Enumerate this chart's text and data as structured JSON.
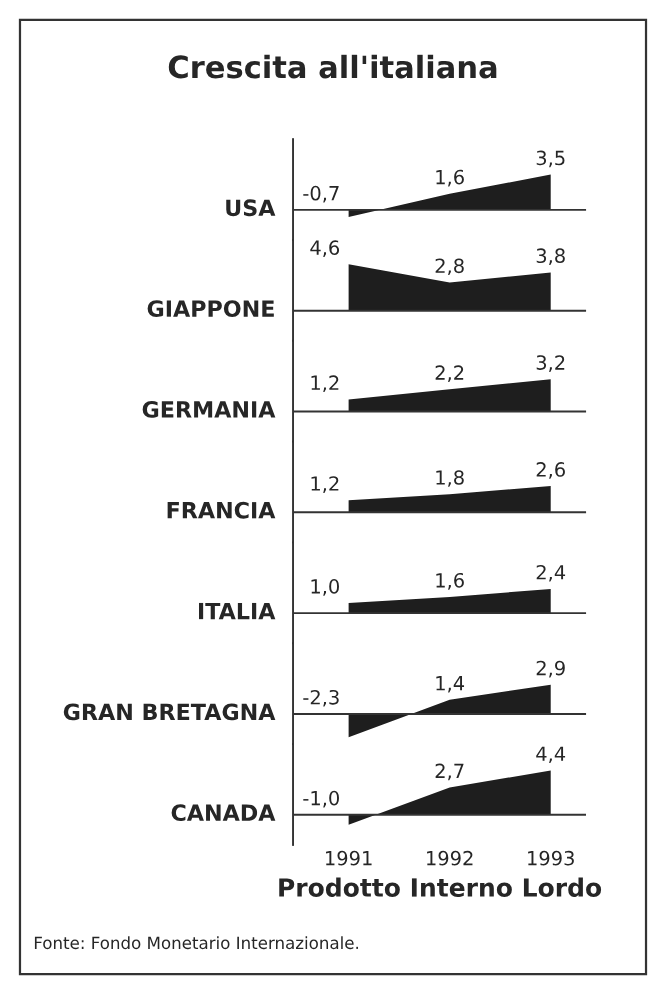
{
  "chart_data": [
    {
      "type": "area",
      "title": "Crescita all'italiana",
      "ylabel": "USA",
      "categories": [
        "1991",
        "1992",
        "1993"
      ],
      "values": [
        -0.7,
        1.6,
        3.5
      ],
      "value_labels": [
        "-0,7",
        "1,6",
        "3,5"
      ],
      "color": "#1e1e1e",
      "tick_labels": false
    },
    {
      "type": "area",
      "ylabel": "GIAPPONE",
      "categories": [
        "1991",
        "1992",
        "1993"
      ],
      "values": [
        4.6,
        2.8,
        3.8
      ],
      "value_labels": [
        "4,6",
        "2,8",
        "3,8"
      ],
      "color": "#1e1e1e",
      "tick_labels": false
    },
    {
      "type": "area",
      "ylabel": "GERMANIA",
      "categories": [
        "1991",
        "1992",
        "1993"
      ],
      "values": [
        1.2,
        2.2,
        3.2
      ],
      "value_labels": [
        "1,2",
        "2,2",
        "3,2"
      ],
      "color": "#1e1e1e",
      "tick_labels": false
    },
    {
      "type": "area",
      "ylabel": "FRANCIA",
      "categories": [
        "1991",
        "1992",
        "1993"
      ],
      "values": [
        1.2,
        1.8,
        2.6
      ],
      "value_labels": [
        "1,2",
        "1,8",
        "2,6"
      ],
      "color": "#1e1e1e",
      "tick_labels": false
    },
    {
      "type": "area",
      "ylabel": "ITALIA",
      "categories": [
        "1991",
        "1992",
        "1993"
      ],
      "values": [
        1.0,
        1.6,
        2.4
      ],
      "value_labels": [
        "1,0",
        "1,6",
        "2,4"
      ],
      "color": "#1e1e1e",
      "tick_labels": false
    },
    {
      "type": "area",
      "ylabel": "GRAN BRETAGNA",
      "categories": [
        "1991",
        "1992",
        "1993"
      ],
      "values": [
        -2.3,
        1.4,
        2.9
      ],
      "value_labels": [
        "-2,3",
        "1,4",
        "2,9"
      ],
      "color": "#1e1e1e",
      "tick_labels": false
    },
    {
      "type": "area",
      "ylabel": "CANADA",
      "xlabel": "Prodotto Interno Lordo",
      "categories": [
        "1991",
        "1992",
        "1993"
      ],
      "values": [
        -1.0,
        2.7,
        4.4
      ],
      "value_labels": [
        "-1,0",
        "2,7",
        "4,4"
      ],
      "color": "#1e1e1e",
      "tick_labels": "x",
      "annotations": [
        "Fonte: Fondo Monetario Internazionale."
      ]
    }
  ]
}
